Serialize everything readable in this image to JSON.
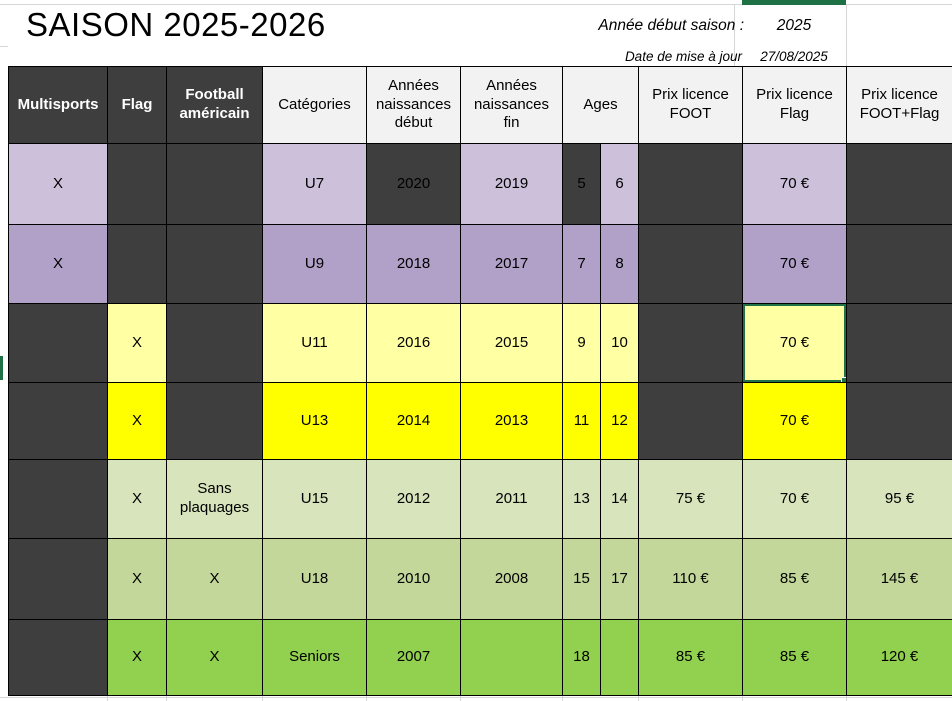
{
  "top": {
    "title": "SAISON 2025-2026",
    "season_label": "Année début saison :",
    "season_value": "2025",
    "updated_label": "Date de mise à jour",
    "updated_value": "27/08/2025"
  },
  "palette": {
    "dark": "#3E3E3E",
    "headerLight": "#F2F2F2",
    "purpleLight": "#CCC0DA",
    "purpleMid": "#B1A0C7",
    "yellowLight": "#FFFFA3",
    "yellow": "#FFFF00",
    "greenLight": "#D8E4BC",
    "greenMid": "#C4D79B",
    "greenBright": "#92D050",
    "selection": "#217346",
    "accentBar": "#1E7145"
  },
  "table": {
    "columns": [
      "multisports",
      "flag",
      "football-americain",
      "categories",
      "naissance-debut",
      "naissance-fin",
      "age-min",
      "age-max",
      "prix-foot",
      "prix-flag",
      "prix-foot-flag"
    ],
    "headers": [
      {
        "key": "multisports",
        "text": "Multisports",
        "style": "dark"
      },
      {
        "key": "flag",
        "text": "Flag",
        "style": "dark"
      },
      {
        "key": "football-americain",
        "text": "Football américain",
        "style": "dark"
      },
      {
        "key": "categories",
        "text": "Catégories",
        "style": "light"
      },
      {
        "key": "naissance-debut",
        "text": "Années naissances début",
        "style": "light"
      },
      {
        "key": "naissance-fin",
        "text": "Années naissances fin",
        "style": "light"
      },
      {
        "key": "ages",
        "text": "Ages",
        "style": "light",
        "span": 2
      },
      {
        "key": "prix-foot",
        "text": "Prix licence FOOT",
        "style": "light"
      },
      {
        "key": "prix-flag",
        "text": "Prix licence Flag",
        "style": "light"
      },
      {
        "key": "prix-foot-flag",
        "text": "Prix licence FOOT+Flag",
        "style": "light"
      }
    ],
    "rows": [
      {
        "key": "u7",
        "cells": [
          {
            "text": "X",
            "bg": "purpleLight"
          },
          {
            "text": "",
            "bg": "dark"
          },
          {
            "text": "",
            "bg": "dark"
          },
          {
            "text": "U7",
            "bg": "purpleLight"
          },
          {
            "text": "2020",
            "bg": "dark"
          },
          {
            "text": "2019",
            "bg": "purpleLight"
          },
          {
            "text": "5",
            "bg": "dark"
          },
          {
            "text": "6",
            "bg": "purpleLight"
          },
          {
            "text": "",
            "bg": "dark"
          },
          {
            "text": "70 €",
            "bg": "purpleLight"
          },
          {
            "text": "",
            "bg": "dark"
          }
        ]
      },
      {
        "key": "u9",
        "cells": [
          {
            "text": "X",
            "bg": "purpleMid"
          },
          {
            "text": "",
            "bg": "dark"
          },
          {
            "text": "",
            "bg": "dark"
          },
          {
            "text": "U9",
            "bg": "purpleMid"
          },
          {
            "text": "2018",
            "bg": "purpleMid"
          },
          {
            "text": "2017",
            "bg": "purpleMid"
          },
          {
            "text": "7",
            "bg": "purpleMid"
          },
          {
            "text": "8",
            "bg": "purpleMid"
          },
          {
            "text": "",
            "bg": "dark"
          },
          {
            "text": "70 €",
            "bg": "purpleMid"
          },
          {
            "text": "",
            "bg": "dark"
          }
        ]
      },
      {
        "key": "u11",
        "cells": [
          {
            "text": "",
            "bg": "dark"
          },
          {
            "text": "X",
            "bg": "yellowLight"
          },
          {
            "text": "",
            "bg": "dark"
          },
          {
            "text": "U11",
            "bg": "yellowLight"
          },
          {
            "text": "2016",
            "bg": "yellowLight"
          },
          {
            "text": "2015",
            "bg": "yellowLight"
          },
          {
            "text": "9",
            "bg": "yellowLight"
          },
          {
            "text": "10",
            "bg": "yellowLight"
          },
          {
            "text": "",
            "bg": "dark"
          },
          {
            "text": "70 €",
            "bg": "yellowLight",
            "selected": true
          },
          {
            "text": "",
            "bg": "dark"
          }
        ]
      },
      {
        "key": "u13",
        "cells": [
          {
            "text": "",
            "bg": "dark"
          },
          {
            "text": "X",
            "bg": "yellow"
          },
          {
            "text": "",
            "bg": "dark"
          },
          {
            "text": "U13",
            "bg": "yellow"
          },
          {
            "text": "2014",
            "bg": "yellow"
          },
          {
            "text": "2013",
            "bg": "yellow"
          },
          {
            "text": "11",
            "bg": "yellow"
          },
          {
            "text": "12",
            "bg": "yellow"
          },
          {
            "text": "",
            "bg": "dark"
          },
          {
            "text": "70 €",
            "bg": "yellow"
          },
          {
            "text": "",
            "bg": "dark"
          }
        ]
      },
      {
        "key": "u15",
        "cells": [
          {
            "text": "",
            "bg": "dark"
          },
          {
            "text": "X",
            "bg": "greenLight"
          },
          {
            "text": "Sans plaquages",
            "bg": "greenLight"
          },
          {
            "text": "U15",
            "bg": "greenLight"
          },
          {
            "text": "2012",
            "bg": "greenLight"
          },
          {
            "text": "2011",
            "bg": "greenLight"
          },
          {
            "text": "13",
            "bg": "greenLight"
          },
          {
            "text": "14",
            "bg": "greenLight"
          },
          {
            "text": "75 €",
            "bg": "greenLight"
          },
          {
            "text": "70 €",
            "bg": "greenLight"
          },
          {
            "text": "95 €",
            "bg": "greenLight"
          }
        ]
      },
      {
        "key": "u18",
        "cells": [
          {
            "text": "",
            "bg": "dark"
          },
          {
            "text": "X",
            "bg": "greenMid"
          },
          {
            "text": "X",
            "bg": "greenMid"
          },
          {
            "text": "U18",
            "bg": "greenMid"
          },
          {
            "text": "2010",
            "bg": "greenMid"
          },
          {
            "text": "2008",
            "bg": "greenMid"
          },
          {
            "text": "15",
            "bg": "greenMid"
          },
          {
            "text": "17",
            "bg": "greenMid"
          },
          {
            "text": "110 €",
            "bg": "greenMid"
          },
          {
            "text": "85 €",
            "bg": "greenMid"
          },
          {
            "text": "145 €",
            "bg": "greenMid"
          }
        ]
      },
      {
        "key": "seniors",
        "cells": [
          {
            "text": "",
            "bg": "dark"
          },
          {
            "text": "X",
            "bg": "greenBright"
          },
          {
            "text": "X",
            "bg": "greenBright"
          },
          {
            "text": "Seniors",
            "bg": "greenBright"
          },
          {
            "text": "2007",
            "bg": "greenBright"
          },
          {
            "text": "",
            "bg": "greenBright"
          },
          {
            "text": "18",
            "bg": "greenBright"
          },
          {
            "text": "",
            "bg": "greenBright"
          },
          {
            "text": "85 €",
            "bg": "greenBright"
          },
          {
            "text": "85 €",
            "bg": "greenBright"
          },
          {
            "text": "120 €",
            "bg": "greenBright"
          }
        ]
      }
    ]
  }
}
